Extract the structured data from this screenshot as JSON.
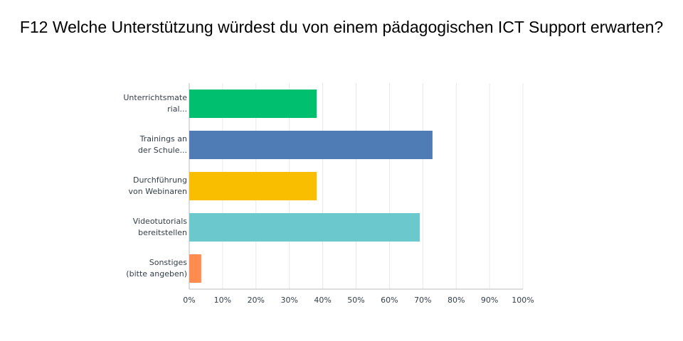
{
  "chart_data": {
    "type": "hbar",
    "title": "F12 Welche Unterstützung würdest du von einem pädagogischen ICT Support erwarten?",
    "categories": [
      [
        "Unterrichtsmate",
        "rial..."
      ],
      [
        "Trainings an",
        "der Schule..."
      ],
      [
        "Durchführung",
        "von Webinaren"
      ],
      [
        "Videotutorials",
        "bereitstellen"
      ],
      [
        "Sonstiges",
        "(bitte angeben)"
      ]
    ],
    "values": [
      38.2,
      72.9,
      38.2,
      69.1,
      3.6
    ],
    "colors": [
      "#00bf6f",
      "#507cb6",
      "#f9be00",
      "#6bc8cd",
      "#ff8b4f"
    ],
    "xlim": [
      0,
      100
    ],
    "xticks": [
      {
        "value": 0,
        "label": "0%"
      },
      {
        "value": 10,
        "label": "10%"
      },
      {
        "value": 20,
        "label": "20%"
      },
      {
        "value": 30,
        "label": "30%"
      },
      {
        "value": 40,
        "label": "40%"
      },
      {
        "value": 50,
        "label": "50%"
      },
      {
        "value": 60,
        "label": "60%"
      },
      {
        "value": 70,
        "label": "70%"
      },
      {
        "value": 80,
        "label": "80%"
      },
      {
        "value": 90,
        "label": "90%"
      },
      {
        "value": 100,
        "label": "100%"
      }
    ],
    "grid": true
  }
}
